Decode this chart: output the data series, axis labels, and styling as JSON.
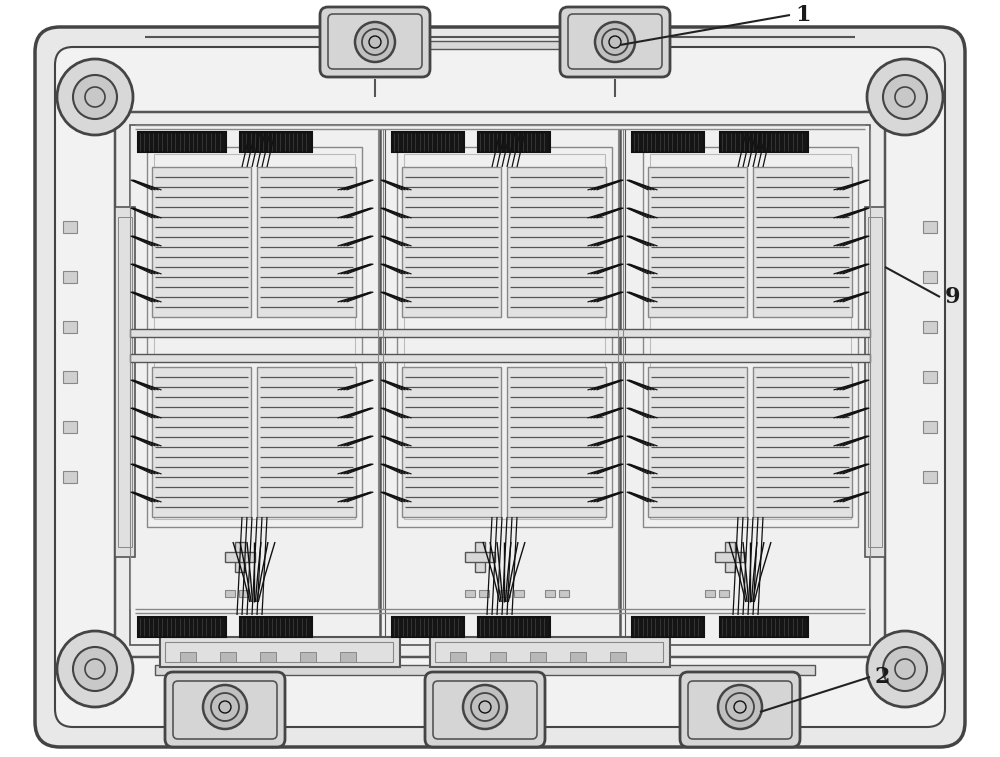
{
  "bg_color": "#ffffff",
  "lc": "#555555",
  "lc2": "#444444",
  "dc": "#111111",
  "gc": "#888888",
  "lgc": "#bbbbbb",
  "label_1": "1",
  "label_2": "2",
  "label_9": "9",
  "lfs": 16,
  "fig_width": 10.0,
  "fig_height": 7.57,
  "body_fc": "#e0e0e0",
  "inner_fc": "#efefef",
  "coil_fc": "#1a1a1a",
  "chip_fc": "#d0d0d0",
  "chip_ec": "#888888"
}
